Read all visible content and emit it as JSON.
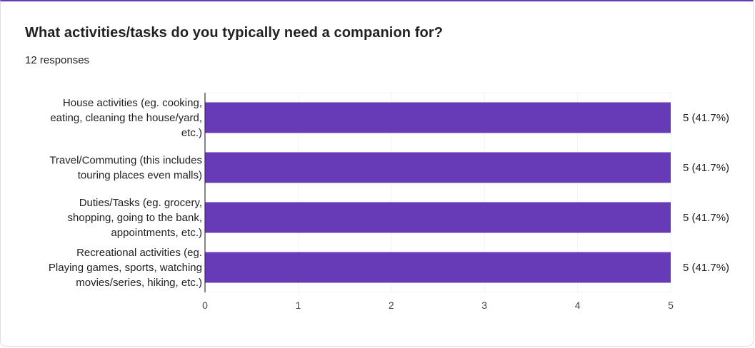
{
  "question": {
    "title": "What activities/tasks do you typically need a companion for?",
    "responses": "12 responses"
  },
  "colors": {
    "bar": "#673ab7",
    "accent": "#673ab7",
    "grid": "#f1f3f4",
    "axis": "#333333",
    "text": "#222222"
  },
  "chart_data": {
    "type": "bar",
    "orientation": "horizontal",
    "categories": [
      [
        "House activities (eg. cooking,",
        "eating, cleaning the house/yard,",
        "etc.)"
      ],
      [
        "Travel/Commuting (this includes",
        "touring places even malls)"
      ],
      [
        "Duties/Tasks (eg. grocery,",
        "shopping, going to the bank,",
        "appointments, etc.)"
      ],
      [
        "Recreational activities (eg.",
        "Playing games, sports, watching",
        "movies/series, hiking, etc.)"
      ]
    ],
    "values": [
      5,
      5,
      5,
      5
    ],
    "value_labels": [
      "5 (41.7%)",
      "5 (41.7%)",
      "5 (41.7%)",
      "5 (41.7%)"
    ],
    "xlim": [
      0,
      5
    ],
    "xticks": [
      "0",
      "1",
      "2",
      "3",
      "4",
      "5"
    ],
    "grid": true,
    "legend": "none"
  }
}
